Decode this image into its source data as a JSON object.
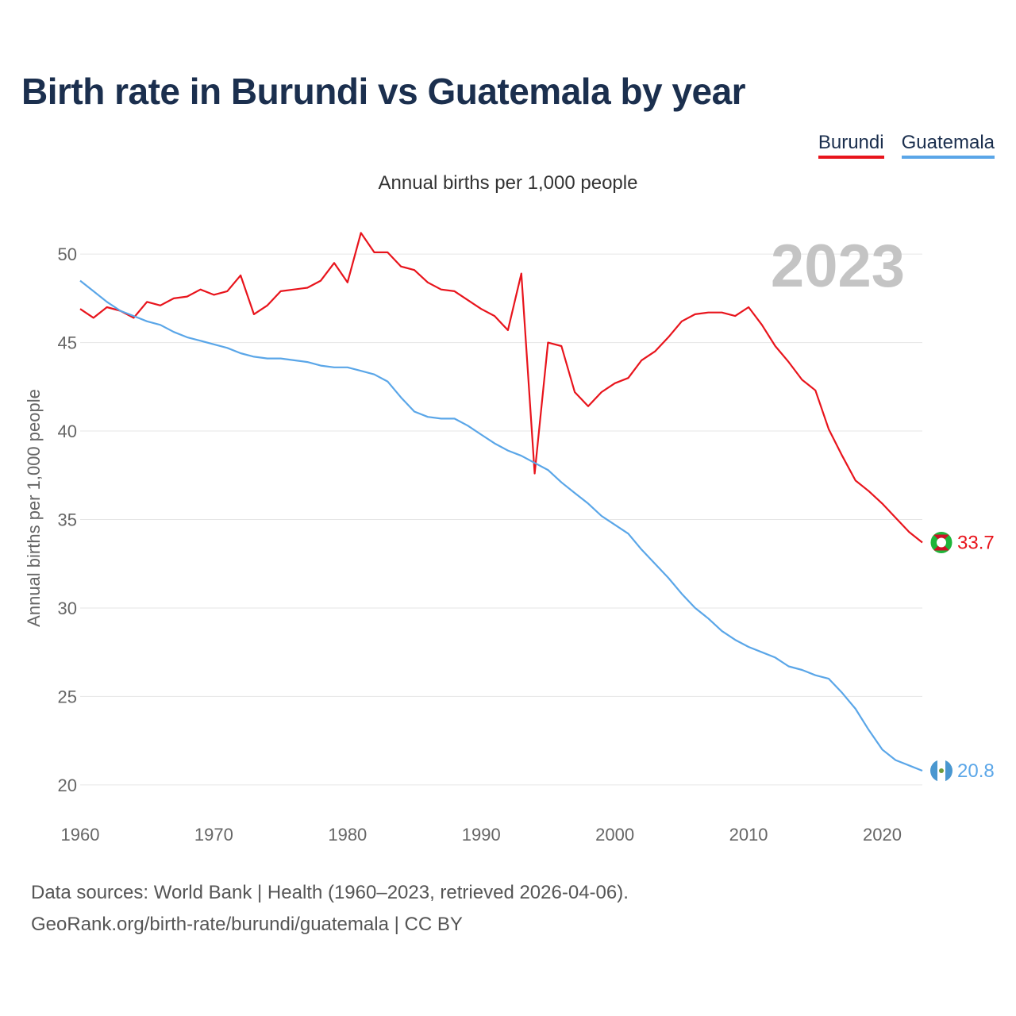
{
  "title": "Birth rate in Burundi vs Guatemala by year",
  "subtitle": "Annual births per 1,000 people",
  "footer": {
    "line1": "Data sources: World Bank | Health (1960–2023, retrieved 2026-04-06).",
    "line2": "GeoRank.org/birth-rate/burundi/guatemala | CC BY"
  },
  "colors": {
    "burundi": "#e8141c",
    "guatemala": "#5aa6e8",
    "grid": "#e6e6e6",
    "watermark": "#c4c4c4"
  },
  "chart_data": {
    "type": "line",
    "title": "Birth rate in Burundi vs Guatemala by year",
    "ylabel": "Annual births per 1,000 people",
    "xlabel": "",
    "xlim": [
      1960,
      2023
    ],
    "ylim": [
      19.5,
      51.8
    ],
    "yticks": [
      20,
      25,
      30,
      35,
      40,
      45,
      50
    ],
    "xticks": [
      1960,
      1970,
      1980,
      1990,
      2000,
      2010,
      2020
    ],
    "year_label": "2023",
    "legend_position": "top-right",
    "series": [
      {
        "name": "Burundi",
        "color": "#e8141c",
        "end_label": "33.7",
        "x": [
          1960,
          1961,
          1962,
          1963,
          1964,
          1965,
          1966,
          1967,
          1968,
          1969,
          1970,
          1971,
          1972,
          1973,
          1974,
          1975,
          1976,
          1977,
          1978,
          1979,
          1980,
          1981,
          1982,
          1983,
          1984,
          1985,
          1986,
          1987,
          1988,
          1989,
          1990,
          1991,
          1992,
          1993,
          1994,
          1995,
          1996,
          1997,
          1998,
          1999,
          2000,
          2001,
          2002,
          2003,
          2004,
          2005,
          2006,
          2007,
          2008,
          2009,
          2010,
          2011,
          2012,
          2013,
          2014,
          2015,
          2016,
          2017,
          2018,
          2019,
          2020,
          2021,
          2022,
          2023
        ],
        "values": [
          46.9,
          46.4,
          47.0,
          46.8,
          46.4,
          47.3,
          47.1,
          47.5,
          47.6,
          48.0,
          47.7,
          47.9,
          48.8,
          46.6,
          47.1,
          47.9,
          48.0,
          48.1,
          48.5,
          49.5,
          48.4,
          51.2,
          50.1,
          50.1,
          49.3,
          49.1,
          48.4,
          48.0,
          47.9,
          47.4,
          46.9,
          46.5,
          45.7,
          48.9,
          37.6,
          45.0,
          44.8,
          42.2,
          41.4,
          42.2,
          42.7,
          43.0,
          44.0,
          44.5,
          45.3,
          46.2,
          46.6,
          46.7,
          46.7,
          46.5,
          47.0,
          46.0,
          44.8,
          43.9,
          42.9,
          42.3,
          40.1,
          38.6,
          37.2,
          36.6,
          35.9,
          35.1,
          34.3,
          33.7
        ]
      },
      {
        "name": "Guatemala",
        "color": "#5aa6e8",
        "end_label": "20.8",
        "x": [
          1960,
          1961,
          1962,
          1963,
          1964,
          1965,
          1966,
          1967,
          1968,
          1969,
          1970,
          1971,
          1972,
          1973,
          1974,
          1975,
          1976,
          1977,
          1978,
          1979,
          1980,
          1981,
          1982,
          1983,
          1984,
          1985,
          1986,
          1987,
          1988,
          1989,
          1990,
          1991,
          1992,
          1993,
          1994,
          1995,
          1996,
          1997,
          1998,
          1999,
          2000,
          2001,
          2002,
          2003,
          2004,
          2005,
          2006,
          2007,
          2008,
          2009,
          2010,
          2011,
          2012,
          2013,
          2014,
          2015,
          2016,
          2017,
          2018,
          2019,
          2020,
          2021,
          2022,
          2023
        ],
        "values": [
          48.5,
          47.9,
          47.3,
          46.8,
          46.5,
          46.2,
          46.0,
          45.6,
          45.3,
          45.1,
          44.9,
          44.7,
          44.4,
          44.2,
          44.1,
          44.1,
          44.0,
          43.9,
          43.7,
          43.6,
          43.6,
          43.4,
          43.2,
          42.8,
          41.9,
          41.1,
          40.8,
          40.7,
          40.7,
          40.3,
          39.8,
          39.3,
          38.9,
          38.6,
          38.2,
          37.8,
          37.1,
          36.5,
          35.9,
          35.2,
          34.7,
          34.2,
          33.3,
          32.5,
          31.7,
          30.8,
          30.0,
          29.4,
          28.7,
          28.2,
          27.8,
          27.5,
          27.2,
          26.7,
          26.5,
          26.2,
          26.0,
          25.2,
          24.3,
          23.1,
          22.0,
          21.4,
          21.1,
          20.8
        ]
      }
    ]
  }
}
